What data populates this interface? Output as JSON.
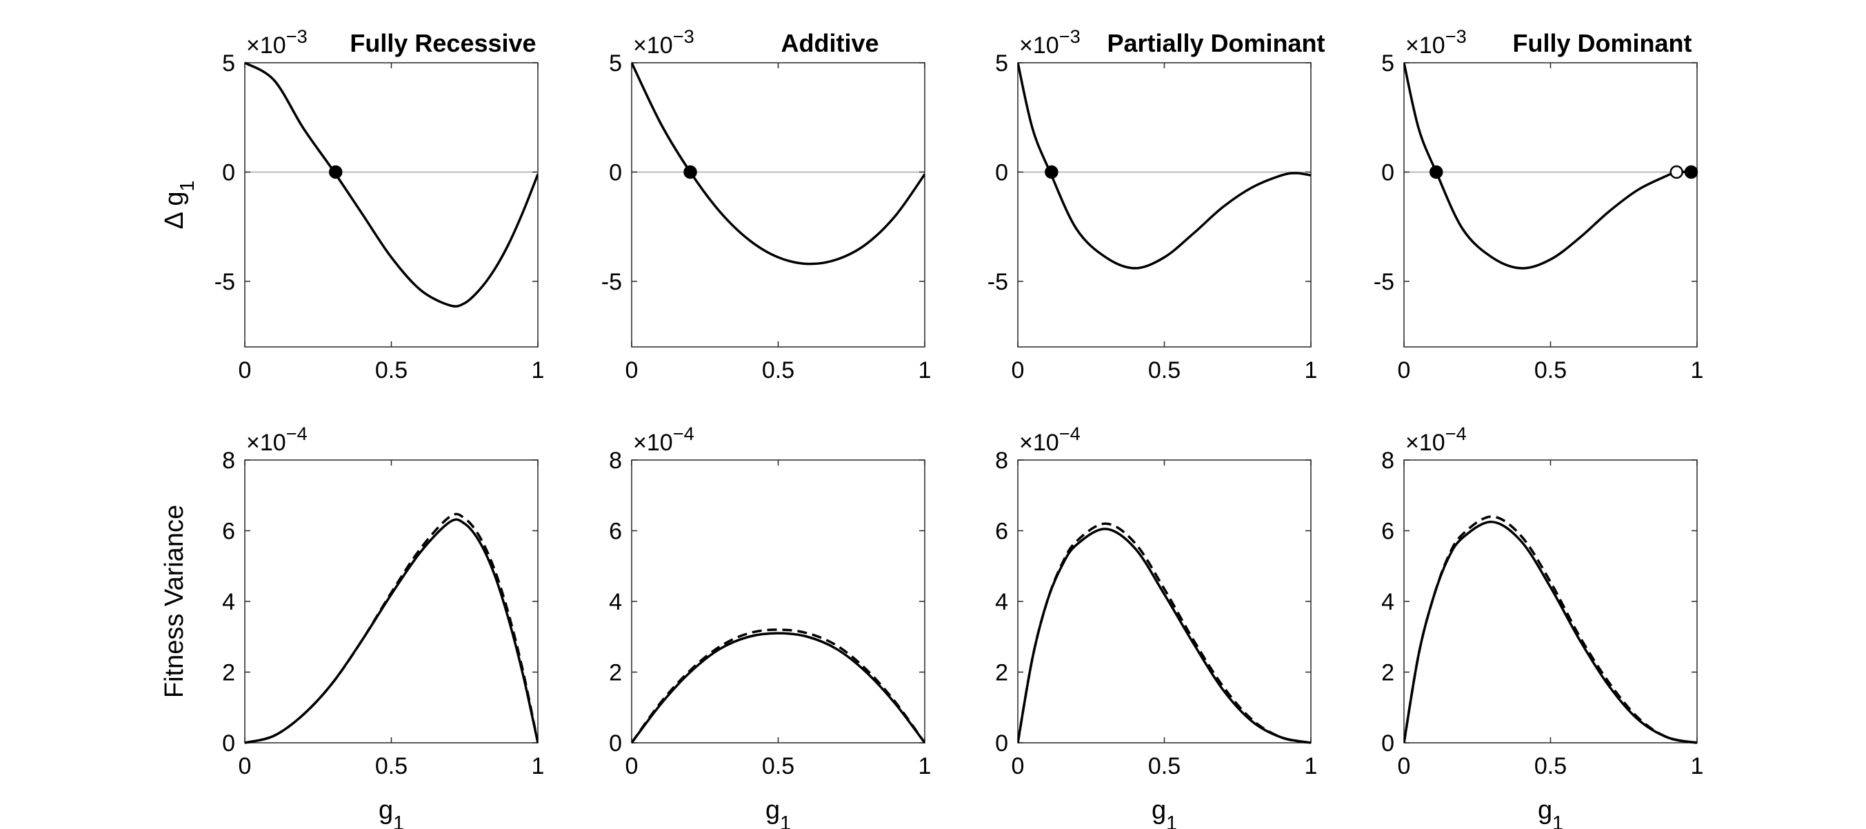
{
  "chart_data": [
    {
      "type": "line",
      "title": "Fully Recessive",
      "xlabel": "",
      "ylabel": "Δ g1",
      "y_exponent": "×10-3",
      "xlim": [
        0,
        1
      ],
      "ylim": [
        -8,
        5
      ],
      "x_ticks": [
        "0",
        "0.5",
        "1"
      ],
      "y_ticks": [
        "5",
        "0",
        "-5"
      ],
      "zero_line": true,
      "series": [
        {
          "style": "solid",
          "x": [
            0,
            0.1,
            0.2,
            0.3,
            0.4,
            0.5,
            0.6,
            0.7,
            0.75,
            0.8,
            0.85,
            0.9,
            0.95,
            1.0
          ],
          "y": [
            5.0,
            4.2,
            2.0,
            0.1,
            -1.9,
            -3.9,
            -5.4,
            -6.1,
            -6.0,
            -5.4,
            -4.5,
            -3.3,
            -1.8,
            -0.1
          ]
        }
      ],
      "equilibria": [
        {
          "x": 0.31,
          "y": 0,
          "filled": true
        }
      ]
    },
    {
      "type": "line",
      "title": "Additive",
      "xlabel": "",
      "ylabel": "",
      "y_exponent": "×10-3",
      "xlim": [
        0,
        1
      ],
      "ylim": [
        -8,
        5
      ],
      "x_ticks": [
        "0",
        "0.5",
        "1"
      ],
      "y_ticks": [
        "5",
        "0",
        "-5"
      ],
      "zero_line": true,
      "series": [
        {
          "style": "solid",
          "x": [
            0,
            0.1,
            0.2,
            0.3,
            0.4,
            0.5,
            0.6,
            0.7,
            0.8,
            0.9,
            1.0
          ],
          "y": [
            5.0,
            2.2,
            0.0,
            -1.8,
            -3.1,
            -3.9,
            -4.2,
            -4.0,
            -3.3,
            -2.0,
            -0.1
          ]
        }
      ],
      "equilibria": [
        {
          "x": 0.2,
          "y": 0,
          "filled": true
        }
      ]
    },
    {
      "type": "line",
      "title": "Partially Dominant",
      "xlabel": "",
      "ylabel": "",
      "y_exponent": "×10-3",
      "xlim": [
        0,
        1
      ],
      "ylim": [
        -8,
        5
      ],
      "x_ticks": [
        "0",
        "0.5",
        "1"
      ],
      "y_ticks": [
        "5",
        "0",
        "-5"
      ],
      "zero_line": true,
      "series": [
        {
          "style": "solid",
          "x": [
            0,
            0.05,
            0.11,
            0.2,
            0.3,
            0.4,
            0.5,
            0.6,
            0.7,
            0.8,
            0.9,
            0.95,
            1.0
          ],
          "y": [
            5.0,
            2.0,
            0.0,
            -2.6,
            -3.9,
            -4.4,
            -3.9,
            -2.8,
            -1.6,
            -0.7,
            -0.15,
            -0.05,
            -0.15
          ]
        }
      ],
      "equilibria": [
        {
          "x": 0.115,
          "y": 0,
          "filled": true
        }
      ]
    },
    {
      "type": "line",
      "title": "Fully Dominant",
      "xlabel": "",
      "ylabel": "",
      "y_exponent": "×10-3",
      "xlim": [
        0,
        1
      ],
      "ylim": [
        -8,
        5
      ],
      "x_ticks": [
        "0",
        "0.5",
        "1"
      ],
      "y_ticks": [
        "5",
        "0",
        "-5"
      ],
      "zero_line": true,
      "series": [
        {
          "style": "solid",
          "x": [
            0,
            0.05,
            0.11,
            0.2,
            0.3,
            0.4,
            0.5,
            0.6,
            0.7,
            0.8,
            0.9,
            0.93,
            0.97,
            1.0
          ],
          "y": [
            5.0,
            2.0,
            0.0,
            -2.6,
            -3.9,
            -4.4,
            -4.0,
            -3.0,
            -1.8,
            -0.8,
            -0.15,
            0.0,
            0.0,
            0.0
          ]
        }
      ],
      "equilibria": [
        {
          "x": 0.11,
          "y": 0,
          "filled": true
        },
        {
          "x": 0.93,
          "y": 0,
          "filled": false
        },
        {
          "x": 0.98,
          "y": 0,
          "filled": true
        }
      ]
    },
    {
      "type": "line",
      "title": "",
      "xlabel": "g1",
      "ylabel": "Fitness Variance",
      "y_exponent": "×10-4",
      "xlim": [
        0,
        1
      ],
      "ylim": [
        0,
        8
      ],
      "x_ticks": [
        "0",
        "0.5",
        "1"
      ],
      "y_ticks": [
        "8",
        "6",
        "4",
        "2",
        "0"
      ],
      "series": [
        {
          "style": "solid",
          "x": [
            0,
            0.1,
            0.2,
            0.3,
            0.4,
            0.5,
            0.6,
            0.7,
            0.75,
            0.8,
            0.85,
            0.9,
            0.95,
            1.0
          ],
          "y": [
            0,
            0.2,
            0.8,
            1.7,
            2.9,
            4.2,
            5.4,
            6.25,
            6.2,
            5.7,
            4.8,
            3.5,
            1.9,
            0
          ]
        },
        {
          "style": "dashed",
          "x": [
            0,
            0.1,
            0.2,
            0.3,
            0.4,
            0.5,
            0.6,
            0.7,
            0.75,
            0.8,
            0.85,
            0.9,
            0.95,
            1.0
          ],
          "y": [
            0,
            0.2,
            0.8,
            1.7,
            2.9,
            4.25,
            5.5,
            6.4,
            6.35,
            5.85,
            4.95,
            3.65,
            2.0,
            0
          ]
        }
      ]
    },
    {
      "type": "line",
      "title": "",
      "xlabel": "g1",
      "ylabel": "",
      "y_exponent": "×10-4",
      "xlim": [
        0,
        1
      ],
      "ylim": [
        0,
        8
      ],
      "x_ticks": [
        "0",
        "0.5",
        "1"
      ],
      "y_ticks": [
        "8",
        "6",
        "4",
        "2",
        "0"
      ],
      "series": [
        {
          "style": "solid",
          "x": [
            0,
            0.1,
            0.2,
            0.3,
            0.4,
            0.5,
            0.6,
            0.7,
            0.8,
            0.9,
            1.0
          ],
          "y": [
            0,
            1.1,
            2.0,
            2.65,
            3.0,
            3.1,
            3.0,
            2.65,
            2.0,
            1.1,
            0
          ]
        },
        {
          "style": "dashed",
          "x": [
            0,
            0.1,
            0.2,
            0.3,
            0.4,
            0.5,
            0.6,
            0.7,
            0.8,
            0.9,
            1.0
          ],
          "y": [
            0,
            1.15,
            2.05,
            2.72,
            3.1,
            3.2,
            3.1,
            2.75,
            2.08,
            1.15,
            0
          ]
        }
      ]
    },
    {
      "type": "line",
      "title": "",
      "xlabel": "g1",
      "ylabel": "",
      "y_exponent": "×10-4",
      "xlim": [
        0,
        1
      ],
      "ylim": [
        0,
        8
      ],
      "x_ticks": [
        "0",
        "0.5",
        "1"
      ],
      "y_ticks": [
        "8",
        "6",
        "4",
        "2",
        "0"
      ],
      "series": [
        {
          "style": "solid",
          "x": [
            0,
            0.05,
            0.1,
            0.15,
            0.2,
            0.3,
            0.4,
            0.5,
            0.6,
            0.7,
            0.8,
            0.9,
            1.0
          ],
          "y": [
            0,
            2.4,
            4.0,
            5.0,
            5.6,
            6.05,
            5.5,
            4.2,
            2.8,
            1.5,
            0.6,
            0.15,
            0
          ]
        },
        {
          "style": "dashed",
          "x": [
            0,
            0.05,
            0.1,
            0.15,
            0.2,
            0.3,
            0.4,
            0.5,
            0.6,
            0.7,
            0.8,
            0.9,
            1.0
          ],
          "y": [
            0,
            2.4,
            4.0,
            5.05,
            5.7,
            6.2,
            5.65,
            4.35,
            2.9,
            1.6,
            0.65,
            0.15,
            0
          ]
        }
      ]
    },
    {
      "type": "line",
      "title": "",
      "xlabel": "g1",
      "ylabel": "",
      "y_exponent": "×10-4",
      "xlim": [
        0,
        1
      ],
      "ylim": [
        0,
        8
      ],
      "x_ticks": [
        "0",
        "0.5",
        "1"
      ],
      "y_ticks": [
        "8",
        "6",
        "4",
        "2",
        "0"
      ],
      "series": [
        {
          "style": "solid",
          "x": [
            0,
            0.05,
            0.1,
            0.15,
            0.2,
            0.3,
            0.4,
            0.5,
            0.6,
            0.7,
            0.8,
            0.9,
            1.0
          ],
          "y": [
            0,
            2.5,
            4.1,
            5.2,
            5.8,
            6.25,
            5.7,
            4.4,
            2.9,
            1.6,
            0.65,
            0.15,
            0
          ]
        },
        {
          "style": "dashed",
          "x": [
            0,
            0.05,
            0.1,
            0.15,
            0.2,
            0.3,
            0.4,
            0.5,
            0.6,
            0.7,
            0.8,
            0.9,
            1.0
          ],
          "y": [
            0,
            2.5,
            4.1,
            5.25,
            5.9,
            6.4,
            5.85,
            4.55,
            3.0,
            1.7,
            0.7,
            0.15,
            0
          ]
        }
      ]
    }
  ]
}
